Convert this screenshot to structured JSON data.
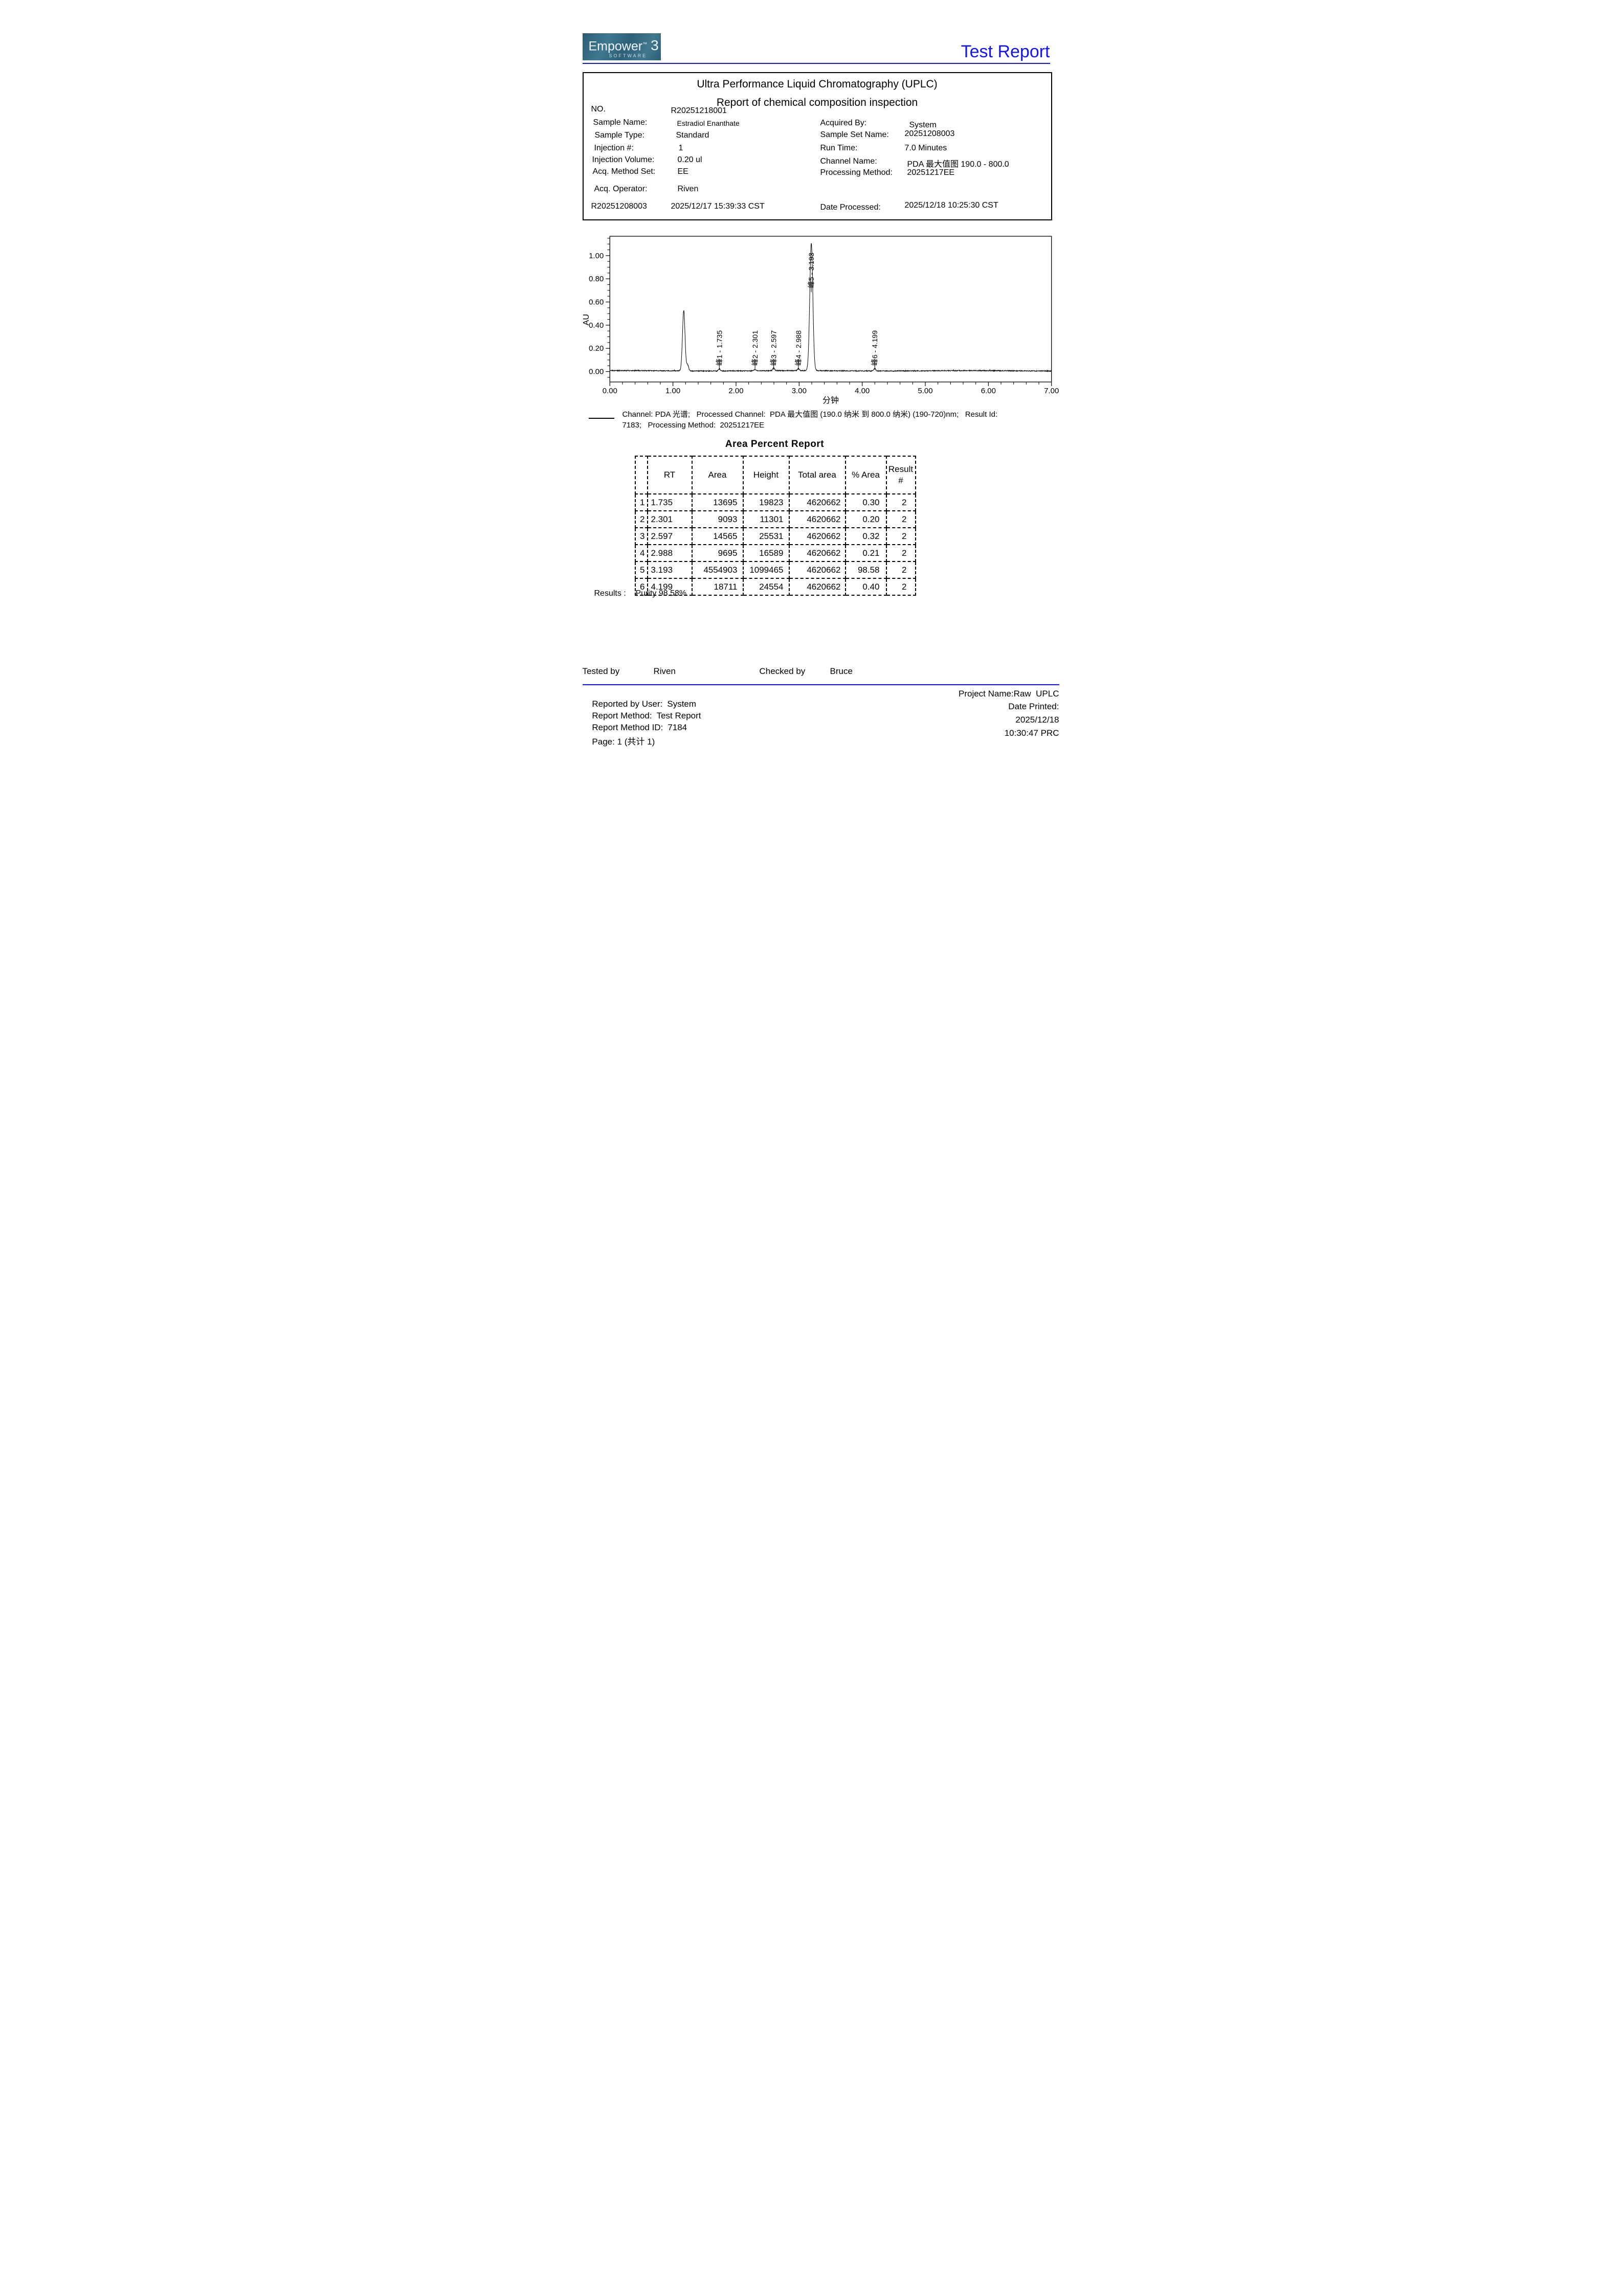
{
  "page": {
    "accent_blue": "#1414f0"
  },
  "header": {
    "logo": {
      "name": "Empower",
      "tm": "™",
      "version": "3",
      "subtitle": "SOFTWARE"
    },
    "title": "Test Report"
  },
  "report_box": {
    "title_line1": "Ultra Performance Liquid Chromatography (UPLC)",
    "title_line2": "Report of chemical composition inspection",
    "no_label": "NO.",
    "no_value": "R20251218001",
    "sample_name_label": "Sample Name:",
    "sample_name_value": "Estradiol Enanthate",
    "sample_type_label": "Sample Type:",
    "sample_type_value": "Standard",
    "injection_num_label": "Injection #:",
    "injection_num_value": "1",
    "injection_volume_label": "Injection Volume:",
    "injection_volume_value": "0.20 ul",
    "acq_method_set_label": "Acq. Method Set:",
    "acq_method_set_value": "EE",
    "acq_operator_label": "Acq. Operator:",
    "acq_operator_value": "Riven",
    "acquired_by_label": "Acquired By:",
    "acquired_by_value": "System",
    "sample_set_name_label": "Sample Set Name:",
    "sample_set_name_value": "20251208003",
    "run_time_label": "Run Time:",
    "run_time_value": "7.0 Minutes",
    "channel_name_label": "Channel Name:",
    "channel_name_value": "PDA 最大值图 190.0 - 800.0",
    "processing_method_label": "Processing Method:",
    "processing_method_value": "20251217EE",
    "run_id": "R20251208003",
    "acq_datetime": "2025/12/17 15:39:33 CST",
    "date_processed_label": "Date Processed:",
    "date_processed_value": "2025/12/18 10:25:30 CST"
  },
  "chart_data": {
    "type": "line",
    "title": "",
    "xlabel": "分钟",
    "ylabel": "AU",
    "xlim": [
      0,
      7
    ],
    "ylim": [
      -0.09,
      1.167
    ],
    "x_major_ticks": [
      0,
      1,
      2,
      3,
      4,
      5,
      6,
      7
    ],
    "x_minor_step": 0.2,
    "y_major_ticks": [
      0,
      0.2,
      0.4,
      0.6,
      0.8,
      1.0
    ],
    "y_minor_step": 0.05,
    "grid": false,
    "legend_position": "below-left",
    "line_color": "#000000",
    "baseline_au": 0.0065,
    "noise_amplitude_au": 0.004,
    "peaks": [
      {
        "rt": 1.171,
        "height_au": 0.52,
        "sigma": 0.02,
        "label": null
      },
      {
        "rt": 1.232,
        "height_au": 0.052,
        "sigma": 0.016,
        "label": null
      },
      {
        "rt": 1.735,
        "height_au": 0.02,
        "sigma": 0.014,
        "label": "峰1 - 1.735"
      },
      {
        "rt": 2.301,
        "height_au": 0.011,
        "sigma": 0.014,
        "label": "峰2 - 2.301"
      },
      {
        "rt": 2.597,
        "height_au": 0.026,
        "sigma": 0.014,
        "label": "峰3 - 2.597"
      },
      {
        "rt": 2.988,
        "height_au": 0.017,
        "sigma": 0.014,
        "label": "峰4 - 2.988"
      },
      {
        "rt": 3.193,
        "height_au": 1.099,
        "sigma": 0.024,
        "label": "峰5 - 3.193"
      },
      {
        "rt": 4.199,
        "height_au": 0.025,
        "sigma": 0.014,
        "label": "峰6 - 4.199"
      }
    ]
  },
  "channel_note": {
    "line1": "Channel: PDA 光谱;   Processed Channel:  PDA 最大值图 (190.0 纳米 到 800.0 纳米) (190-720)nm;   Result Id:",
    "line2": "7183;   Processing Method:  20251217EE"
  },
  "area_table": {
    "title": "Area Percent Report",
    "columns": [
      "",
      "RT",
      "Area",
      "Height",
      "Total area",
      "% Area",
      "Result\n#"
    ],
    "rows": [
      [
        "1",
        "1.735",
        "13695",
        "19823",
        "4620662",
        "0.30",
        "2"
      ],
      [
        "2",
        "2.301",
        "9093",
        "11301",
        "4620662",
        "0.20",
        "2"
      ],
      [
        "3",
        "2.597",
        "14565",
        "25531",
        "4620662",
        "0.32",
        "2"
      ],
      [
        "4",
        "2.988",
        "9695",
        "16589",
        "4620662",
        "0.21",
        "2"
      ],
      [
        "5",
        "3.193",
        "4554903",
        "1099465",
        "4620662",
        "98.58",
        "2"
      ],
      [
        "6",
        "4.199",
        "18711",
        "24554",
        "4620662",
        "0.40",
        "2"
      ]
    ]
  },
  "results": {
    "label": "Results :",
    "value": "Purity 98.58%"
  },
  "signoff": {
    "tested_by_label": "Tested by",
    "tested_by_value": "Riven",
    "checked_by_label": "Checked by",
    "checked_by_value": "Bruce"
  },
  "footer": {
    "left": [
      {
        "label": "Reported by User:",
        "value": "System"
      },
      {
        "label": "Report Method:",
        "value": "Test Report"
      },
      {
        "label": "Report Method ID:",
        "value": "7184"
      },
      {
        "label": "Page: 1 (共计 1)",
        "value": ""
      }
    ],
    "right": [
      "Project Name:Raw  UPLC",
      "Date Printed:",
      "2025/12/18",
      "10:30:47 PRC"
    ]
  }
}
